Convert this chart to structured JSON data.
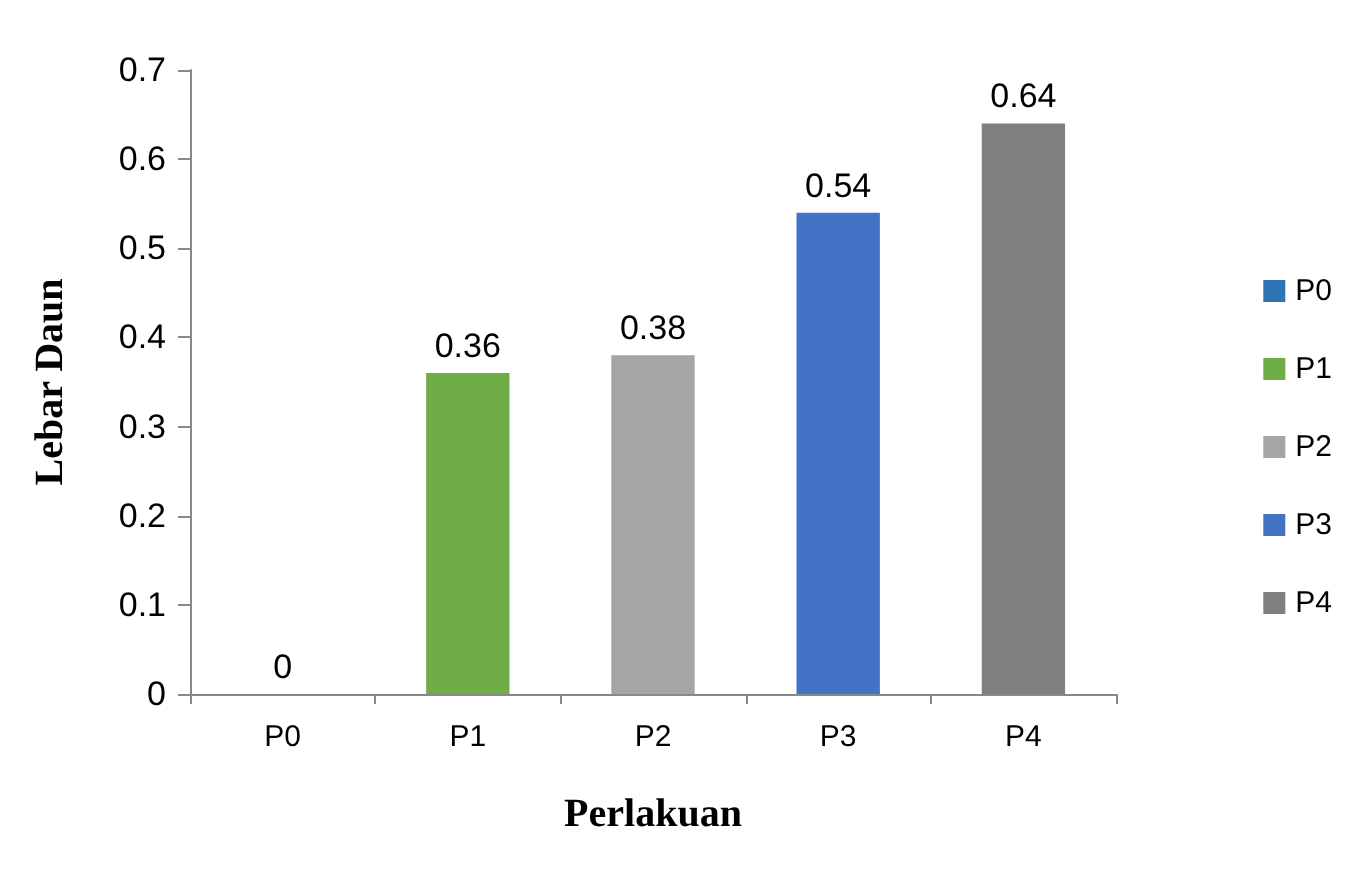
{
  "chart_data": {
    "type": "bar",
    "xlabel": "Perlakuan",
    "ylabel": "Lebar Daun",
    "categories": [
      "P0",
      "P1",
      "P2",
      "P3",
      "P4"
    ],
    "stacked": true,
    "series": [
      {
        "name": "P0",
        "color": "#2e75b6",
        "values": [
          0,
          null,
          null,
          null,
          null
        ]
      },
      {
        "name": "P1",
        "color": "#70ad47",
        "values": [
          null,
          0.36,
          null,
          null,
          null
        ]
      },
      {
        "name": "P2",
        "color": "#a5a5a5",
        "values": [
          null,
          null,
          0.38,
          null,
          null
        ]
      },
      {
        "name": "P3",
        "color": "#4472c4",
        "values": [
          null,
          null,
          null,
          0.54,
          null
        ]
      },
      {
        "name": "P4",
        "color": "#7f7f7f",
        "values": [
          null,
          null,
          null,
          null,
          0.64
        ]
      }
    ],
    "ylim": [
      0,
      0.7
    ],
    "yticks": [
      0,
      0.1,
      0.2,
      0.3,
      0.4,
      0.5,
      0.6,
      0.7
    ],
    "grid": false,
    "legend": "right",
    "data_labels": true
  }
}
